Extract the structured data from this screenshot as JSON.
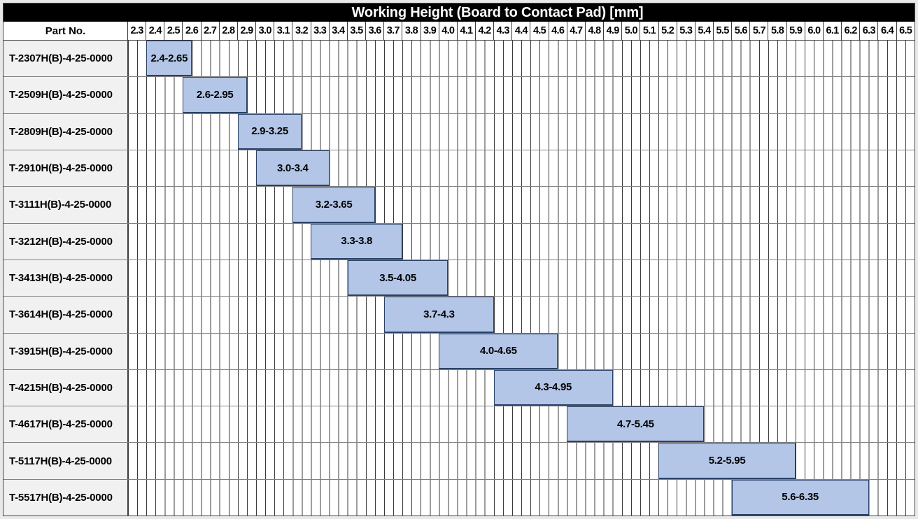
{
  "chart_data": {
    "type": "bar",
    "variant": "horizontal-range-gantt",
    "title": "Working Height (Board to Contact Pad) [mm]",
    "part_col_header": "Part No.",
    "axis": {
      "min": 2.3,
      "max": 6.6,
      "tick_step": 0.1,
      "subdivision": 0.05,
      "tick_labels": [
        "2.3",
        "2.4",
        "2.5",
        "2.6",
        "2.7",
        "2.8",
        "2.9",
        "3.0",
        "3.1",
        "3.2",
        "3.3",
        "3.4",
        "3.5",
        "3.6",
        "3.7",
        "3.8",
        "3.9",
        "4.0",
        "4.1",
        "4.2",
        "4.3",
        "4.4",
        "4.5",
        "4.6",
        "4.7",
        "4.8",
        "4.9",
        "5.0",
        "5.1",
        "5.2",
        "5.3",
        "5.4",
        "5.5",
        "5.6",
        "5.7",
        "5.8",
        "5.9",
        "6.0",
        "6.1",
        "6.2",
        "6.3",
        "6.4",
        "6.5"
      ]
    },
    "grid": "on",
    "legend": "none",
    "rows": [
      {
        "part_no": "T-2307H(B)-4-25-0000",
        "range": [
          2.4,
          2.65
        ],
        "label": "2.4-2.65"
      },
      {
        "part_no": "T-2509H(B)-4-25-0000",
        "range": [
          2.6,
          2.95
        ],
        "label": "2.6-2.95"
      },
      {
        "part_no": "T-2809H(B)-4-25-0000",
        "range": [
          2.9,
          3.25
        ],
        "label": "2.9-3.25"
      },
      {
        "part_no": "T-2910H(B)-4-25-0000",
        "range": [
          3.0,
          3.4
        ],
        "label": "3.0-3.4"
      },
      {
        "part_no": "T-3111H(B)-4-25-0000",
        "range": [
          3.2,
          3.65
        ],
        "label": "3.2-3.65"
      },
      {
        "part_no": "T-3212H(B)-4-25-0000",
        "range": [
          3.3,
          3.8
        ],
        "label": "3.3-3.8"
      },
      {
        "part_no": "T-3413H(B)-4-25-0000",
        "range": [
          3.5,
          4.05
        ],
        "label": "3.5-4.05"
      },
      {
        "part_no": "T-3614H(B)-4-25-0000",
        "range": [
          3.7,
          4.3
        ],
        "label": "3.7-4.3"
      },
      {
        "part_no": "T-3915H(B)-4-25-0000",
        "range": [
          4.0,
          4.65
        ],
        "label": "4.0-4.65"
      },
      {
        "part_no": "T-4215H(B)-4-25-0000",
        "range": [
          4.3,
          4.95
        ],
        "label": "4.3-4.95"
      },
      {
        "part_no": "T-4617H(B)-4-25-0000",
        "range": [
          4.7,
          5.45
        ],
        "label": "4.7-5.45"
      },
      {
        "part_no": "T-5117H(B)-4-25-0000",
        "range": [
          5.2,
          5.95
        ],
        "label": "5.2-5.95"
      },
      {
        "part_no": "T-5517H(B)-4-25-0000",
        "range": [
          5.6,
          6.35
        ],
        "label": "5.6-6.35"
      }
    ],
    "colors": {
      "bar_fill": "#b4c6e7",
      "bar_border": "#2a4166",
      "title_bg": "#000000",
      "title_fg": "#ffffff",
      "part_cell_bg": "#f1f1f1",
      "grid_line": "#3b3b3b",
      "row_separator": "#828282",
      "page_margin": "#e9e9e9"
    }
  }
}
